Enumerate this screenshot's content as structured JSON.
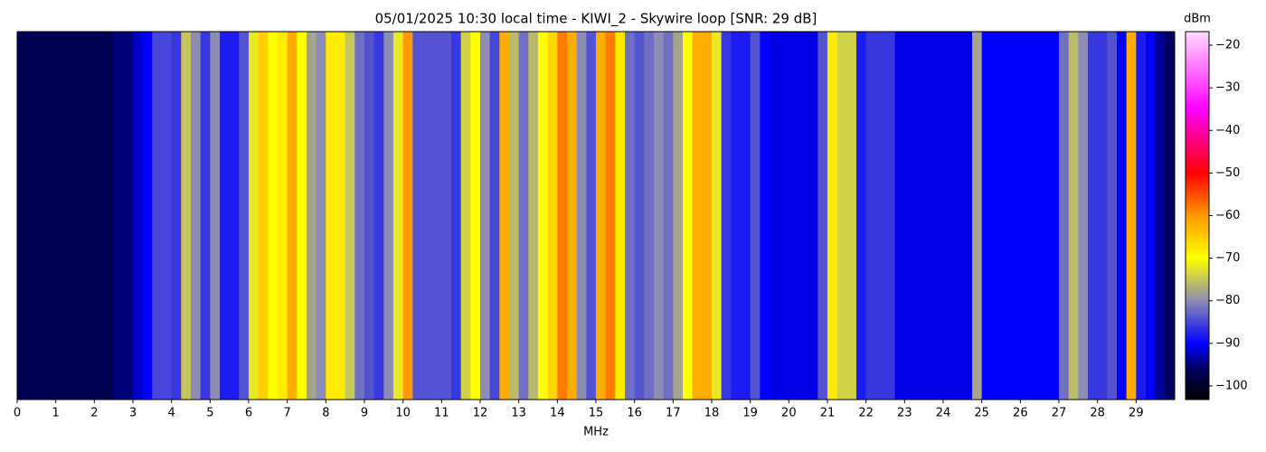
{
  "chart_data": {
    "type": "waterfall",
    "title": "05/01/2025 10:30 local time - KIWI_2 - Skywire loop [SNR: 29 dB]",
    "xlabel": "MHz",
    "colorbar_label": "dBm",
    "xlim": [
      0,
      30
    ],
    "xticks": [
      0,
      1,
      2,
      3,
      4,
      5,
      6,
      7,
      8,
      9,
      10,
      11,
      12,
      13,
      14,
      15,
      16,
      17,
      18,
      19,
      20,
      21,
      22,
      23,
      24,
      25,
      26,
      27,
      28,
      29
    ],
    "clim": [
      -103.2,
      -16.8
    ],
    "cticks": [
      {
        "value": -100,
        "label": "−100"
      },
      {
        "value": -90,
        "label": "−90"
      },
      {
        "value": -80,
        "label": "−80"
      },
      {
        "value": -70,
        "label": "−70"
      },
      {
        "value": -60,
        "label": "−60"
      },
      {
        "value": -50,
        "label": "−50"
      },
      {
        "value": -40,
        "label": "−40"
      },
      {
        "value": -30,
        "label": "−30"
      },
      {
        "value": -20,
        "label": "−20"
      }
    ],
    "colormap": [
      {
        "value": -103,
        "color": "#000000"
      },
      {
        "value": -96,
        "color": "#000060"
      },
      {
        "value": -90,
        "color": "#0000ff"
      },
      {
        "value": -80,
        "color": "#8c8cb4"
      },
      {
        "value": -70,
        "color": "#ffff00"
      },
      {
        "value": -60,
        "color": "#ff9a00"
      },
      {
        "value": -50,
        "color": "#ff0000"
      },
      {
        "value": -35,
        "color": "#ff00ff"
      },
      {
        "value": -17,
        "color": "#ffd8ff"
      }
    ],
    "values": [
      -97,
      -97,
      -97,
      -97,
      -97,
      -97,
      -97,
      -97,
      -97,
      -97,
      -95,
      -95,
      -92,
      -90,
      -85,
      -85,
      -86,
      -75,
      -80,
      -86,
      -80,
      -88,
      -88,
      -84,
      -72,
      -65,
      -70,
      -68,
      -62,
      -70,
      -78,
      -80,
      -68,
      -68,
      -75,
      -82,
      -84,
      -86,
      -80,
      -72,
      -60,
      -84,
      -84,
      -84,
      -84,
      -86,
      -74,
      -70,
      -80,
      -85,
      -62,
      -76,
      -82,
      -76,
      -70,
      -66,
      -58,
      -62,
      -80,
      -84,
      -62,
      -58,
      -68,
      -82,
      -84,
      -82,
      -80,
      -82,
      -78,
      -70,
      -62,
      -62,
      -72,
      -86,
      -88,
      -88,
      -84,
      -90,
      -91,
      -91,
      -91,
      -91,
      -91,
      -84,
      -68,
      -74,
      -74,
      -88,
      -86,
      -86,
      -86,
      -91,
      -91,
      -91,
      -91,
      -91,
      -91,
      -91,
      -91,
      -78,
      -90,
      -90,
      -90,
      -90,
      -90,
      -90,
      -90,
      -90,
      -82,
      -76,
      -80,
      -86,
      -86,
      -84,
      -90,
      -62,
      -88,
      -90,
      -94,
      -96
    ]
  }
}
